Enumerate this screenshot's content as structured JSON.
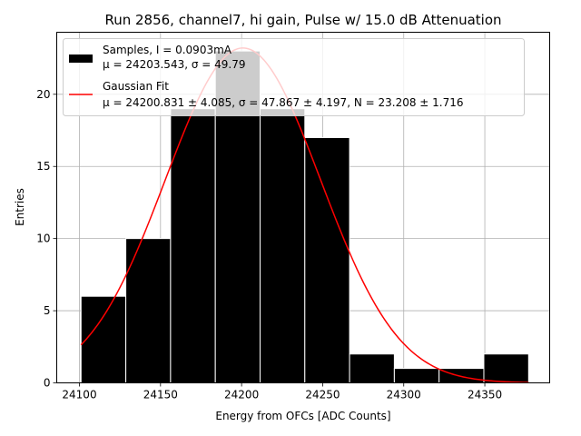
{
  "chart_data": {
    "type": "bar",
    "title": "Run 2856, channel7, hi gain, Pulse w/ 15.0 dB Attenuation",
    "xlabel": "Energy from OFCs [ADC Counts]",
    "ylabel": "Entries",
    "xlim": [
      24086,
      24390
    ],
    "ylim": [
      0,
      24.3
    ],
    "xticks": [
      24100,
      24150,
      24200,
      24250,
      24300,
      24350
    ],
    "yticks": [
      0,
      5,
      10,
      15,
      20
    ],
    "grid": true,
    "legend_position": "top-left",
    "histogram": {
      "name": "Samples, I = 0.0903mA",
      "stats_label": "μ = 24203.543, σ = 49.79",
      "color": "#000000",
      "bin_edges": [
        24101,
        24128.6,
        24156.2,
        24183.8,
        24211.4,
        24239.0,
        24266.6,
        24294.2,
        24321.8,
        24349.4,
        24377.0
      ],
      "counts": [
        6,
        10,
        19,
        23,
        19,
        17,
        2,
        1,
        1,
        2
      ]
    },
    "fit": {
      "name": "Gaussian Fit",
      "stats_label": "μ = 24200.831 ± 4.085, σ = 47.867 ± 4.197, N = 23.208 ± 1.716",
      "color": "#ff0000",
      "mu": 24200.831,
      "sigma": 47.867,
      "N": 23.208,
      "x_range": [
        24101,
        24377
      ]
    }
  }
}
